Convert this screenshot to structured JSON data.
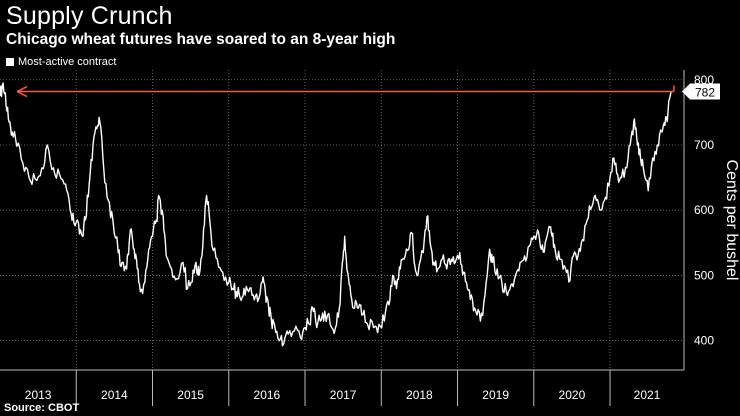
{
  "title": "Supply Crunch",
  "subtitle": "Chicago wheat futures have soared to an 8-year high",
  "legend": {
    "label": "Most-active contract"
  },
  "source": "Source: CBOT",
  "colors": {
    "line": "#ffffff",
    "reference": "#ff5a1f",
    "grid": "#7a7a7a",
    "background": "#000000"
  },
  "chart_data": {
    "type": "line",
    "title": "Supply Crunch",
    "subtitle": "Chicago wheat futures have soared to an 8-year high",
    "ylabel": "Cents per bushel",
    "xlabel": "",
    "ylim": [
      355,
      815
    ],
    "xlim": [
      2013.0,
      2021.97
    ],
    "yticks": [
      400,
      500,
      600,
      700,
      800
    ],
    "xtick_labels": [
      "2013",
      "2014",
      "2015",
      "2016",
      "2017",
      "2018",
      "2019",
      "2020",
      "2021"
    ],
    "reference_line": {
      "value": 782,
      "label": "782",
      "from": 2013.25,
      "to": 2021.95
    },
    "series": [
      {
        "name": "Most-active contract",
        "points": [
          [
            2013.0,
            775
          ],
          [
            2013.04,
            795
          ],
          [
            2013.08,
            760
          ],
          [
            2013.12,
            735
          ],
          [
            2013.16,
            720
          ],
          [
            2013.22,
            698
          ],
          [
            2013.3,
            672
          ],
          [
            2013.38,
            650
          ],
          [
            2013.46,
            648
          ],
          [
            2013.55,
            665
          ],
          [
            2013.62,
            700
          ],
          [
            2013.7,
            665
          ],
          [
            2013.78,
            655
          ],
          [
            2013.86,
            640
          ],
          [
            2013.92,
            600
          ],
          [
            2013.97,
            580
          ],
          [
            2014.03,
            580
          ],
          [
            2014.08,
            560
          ],
          [
            2014.12,
            585
          ],
          [
            2014.17,
            640
          ],
          [
            2014.22,
            700
          ],
          [
            2014.27,
            725
          ],
          [
            2014.31,
            735
          ],
          [
            2014.36,
            665
          ],
          [
            2014.42,
            615
          ],
          [
            2014.48,
            585
          ],
          [
            2014.55,
            535
          ],
          [
            2014.6,
            520
          ],
          [
            2014.66,
            510
          ],
          [
            2014.71,
            570
          ],
          [
            2014.76,
            540
          ],
          [
            2014.8,
            510
          ],
          [
            2014.84,
            475
          ],
          [
            2014.9,
            490
          ],
          [
            2014.95,
            540
          ],
          [
            2015.0,
            560
          ],
          [
            2015.05,
            585
          ],
          [
            2015.09,
            620
          ],
          [
            2015.14,
            590
          ],
          [
            2015.18,
            530
          ],
          [
            2015.25,
            510
          ],
          [
            2015.32,
            495
          ],
          [
            2015.4,
            520
          ],
          [
            2015.46,
            480
          ],
          [
            2015.52,
            490
          ],
          [
            2015.57,
            520
          ],
          [
            2015.61,
            500
          ],
          [
            2015.66,
            545
          ],
          [
            2015.7,
            615
          ],
          [
            2015.74,
            600
          ],
          [
            2015.78,
            545
          ],
          [
            2015.85,
            525
          ],
          [
            2015.92,
            505
          ],
          [
            2016.0,
            490
          ],
          [
            2016.05,
            480
          ],
          [
            2016.1,
            475
          ],
          [
            2016.15,
            465
          ],
          [
            2016.2,
            480
          ],
          [
            2016.26,
            475
          ],
          [
            2016.32,
            470
          ],
          [
            2016.38,
            460
          ],
          [
            2016.44,
            490
          ],
          [
            2016.48,
            475
          ],
          [
            2016.52,
            455
          ],
          [
            2016.56,
            430
          ],
          [
            2016.6,
            425
          ],
          [
            2016.66,
            400
          ],
          [
            2016.72,
            395
          ],
          [
            2016.78,
            410
          ],
          [
            2016.86,
            415
          ],
          [
            2016.94,
            405
          ],
          [
            2017.0,
            420
          ],
          [
            2017.06,
            425
          ],
          [
            2017.1,
            450
          ],
          [
            2017.14,
            430
          ],
          [
            2017.2,
            430
          ],
          [
            2017.26,
            445
          ],
          [
            2017.33,
            425
          ],
          [
            2017.4,
            420
          ],
          [
            2017.45,
            450
          ],
          [
            2017.49,
            520
          ],
          [
            2017.52,
            560
          ],
          [
            2017.56,
            505
          ],
          [
            2017.6,
            470
          ],
          [
            2017.65,
            450
          ],
          [
            2017.7,
            450
          ],
          [
            2017.76,
            440
          ],
          [
            2017.82,
            425
          ],
          [
            2017.9,
            420
          ],
          [
            2017.97,
            425
          ],
          [
            2018.04,
            430
          ],
          [
            2018.1,
            455
          ],
          [
            2018.15,
            500
          ],
          [
            2018.2,
            480
          ],
          [
            2018.25,
            510
          ],
          [
            2018.3,
            525
          ],
          [
            2018.36,
            540
          ],
          [
            2018.4,
            565
          ],
          [
            2018.44,
            515
          ],
          [
            2018.48,
            500
          ],
          [
            2018.55,
            535
          ],
          [
            2018.6,
            590
          ],
          [
            2018.64,
            550
          ],
          [
            2018.69,
            520
          ],
          [
            2018.74,
            510
          ],
          [
            2018.8,
            525
          ],
          [
            2018.86,
            510
          ],
          [
            2018.92,
            525
          ],
          [
            2018.97,
            520
          ],
          [
            2019.03,
            535
          ],
          [
            2019.08,
            505
          ],
          [
            2019.13,
            480
          ],
          [
            2019.18,
            470
          ],
          [
            2019.24,
            445
          ],
          [
            2019.3,
            430
          ],
          [
            2019.36,
            470
          ],
          [
            2019.42,
            540
          ],
          [
            2019.46,
            520
          ],
          [
            2019.52,
            510
          ],
          [
            2019.58,
            490
          ],
          [
            2019.64,
            475
          ],
          [
            2019.7,
            485
          ],
          [
            2019.76,
            500
          ],
          [
            2019.82,
            520
          ],
          [
            2019.88,
            530
          ],
          [
            2019.94,
            545
          ],
          [
            2020.0,
            560
          ],
          [
            2020.05,
            570
          ],
          [
            2020.1,
            540
          ],
          [
            2020.15,
            550
          ],
          [
            2020.2,
            575
          ],
          [
            2020.24,
            560
          ],
          [
            2020.28,
            540
          ],
          [
            2020.34,
            525
          ],
          [
            2020.4,
            515
          ],
          [
            2020.46,
            490
          ],
          [
            2020.52,
            530
          ],
          [
            2020.58,
            530
          ],
          [
            2020.64,
            555
          ],
          [
            2020.7,
            585
          ],
          [
            2020.76,
            605
          ],
          [
            2020.82,
            615
          ],
          [
            2020.88,
            600
          ],
          [
            2020.94,
            620
          ],
          [
            2021.0,
            650
          ],
          [
            2021.05,
            680
          ],
          [
            2021.1,
            655
          ],
          [
            2021.15,
            650
          ],
          [
            2021.22,
            665
          ],
          [
            2021.28,
            715
          ],
          [
            2021.32,
            740
          ],
          [
            2021.36,
            700
          ],
          [
            2021.4,
            680
          ],
          [
            2021.45,
            655
          ],
          [
            2021.5,
            630
          ],
          [
            2021.56,
            680
          ],
          [
            2021.62,
            700
          ],
          [
            2021.68,
            720
          ],
          [
            2021.72,
            730
          ],
          [
            2021.76,
            750
          ],
          [
            2021.8,
            782
          ]
        ]
      }
    ]
  }
}
